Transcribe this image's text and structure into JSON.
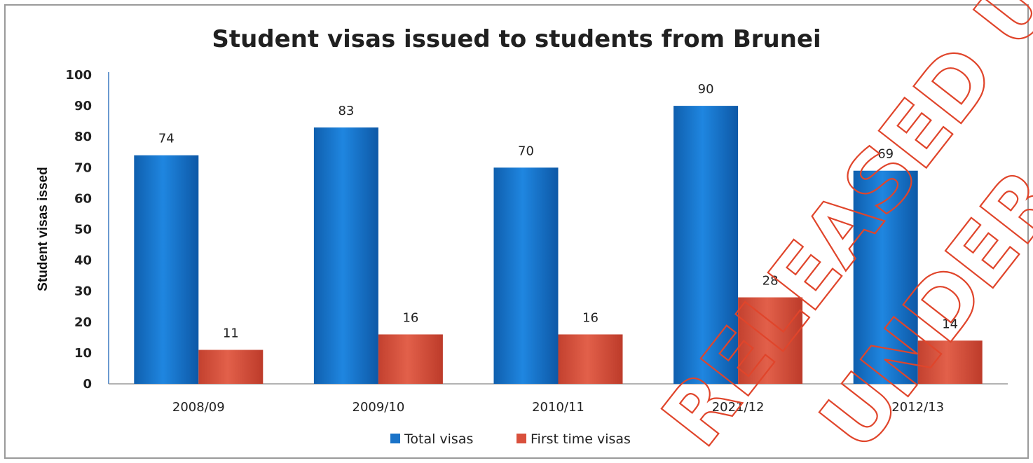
{
  "chart_data": {
    "type": "bar",
    "title": "Student visas issued to students from Brunei",
    "xlabel": "",
    "ylabel": "Student visas issed",
    "ylim": [
      0,
      100
    ],
    "yticks": [
      0,
      10,
      20,
      30,
      40,
      50,
      60,
      70,
      80,
      90,
      100
    ],
    "categories": [
      "2008/09",
      "2009/10",
      "2010/11",
      "2021/12",
      "2012/13"
    ],
    "series": [
      {
        "name": "Total visas",
        "color": "#1a73c8",
        "values": [
          74,
          83,
          70,
          90,
          69
        ]
      },
      {
        "name": "First time visas",
        "color": "#d9503c",
        "values": [
          11,
          16,
          16,
          28,
          14
        ]
      }
    ],
    "grid": false,
    "legend_position": "bottom"
  },
  "watermark": {
    "lines": [
      "RELEASED UNDER",
      "UNDER FOI"
    ],
    "color": "#e0452b"
  }
}
